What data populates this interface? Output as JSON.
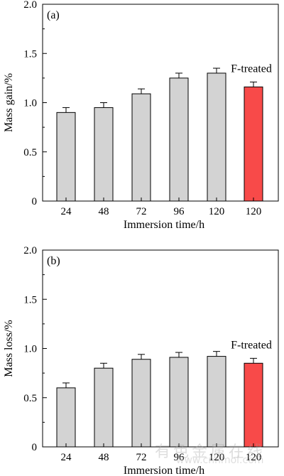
{
  "chart_data": [
    {
      "type": "bar",
      "panel_label": "(a)",
      "categories": [
        "24",
        "48",
        "72",
        "96",
        "120",
        "120"
      ],
      "values": [
        0.9,
        0.95,
        1.09,
        1.25,
        1.3,
        1.16
      ],
      "errors": [
        0.05,
        0.05,
        0.05,
        0.05,
        0.05,
        0.05
      ],
      "bar_colors": [
        "#d3d3d3",
        "#d3d3d3",
        "#d3d3d3",
        "#d3d3d3",
        "#d3d3d3",
        "#f84a49"
      ],
      "xlabel": "Immersion time/h",
      "ylabel": "Mass gain/%",
      "ylim": [
        0,
        2.0
      ],
      "yticks": [
        "0",
        "0.5",
        "1.0",
        "1.5",
        "2.0"
      ],
      "annotation": "F-treated"
    },
    {
      "type": "bar",
      "panel_label": "(b)",
      "categories": [
        "24",
        "48",
        "72",
        "96",
        "120",
        "120"
      ],
      "values": [
        0.6,
        0.8,
        0.89,
        0.91,
        0.92,
        0.85
      ],
      "errors": [
        0.05,
        0.05,
        0.05,
        0.05,
        0.05,
        0.05
      ],
      "bar_colors": [
        "#d3d3d3",
        "#d3d3d3",
        "#d3d3d3",
        "#d3d3d3",
        "#d3d3d3",
        "#f84a49"
      ],
      "xlabel": "Immersion time/h",
      "ylabel": "Mass loss/%",
      "ylim": [
        0,
        2.0
      ],
      "yticks": [
        "0",
        "0.5",
        "1.0",
        "1.5",
        "2.0"
      ],
      "annotation": "F-treated"
    }
  ],
  "watermark": {
    "text_cn": "有色金属在线",
    "text_url": "www.cnnmol.com"
  }
}
